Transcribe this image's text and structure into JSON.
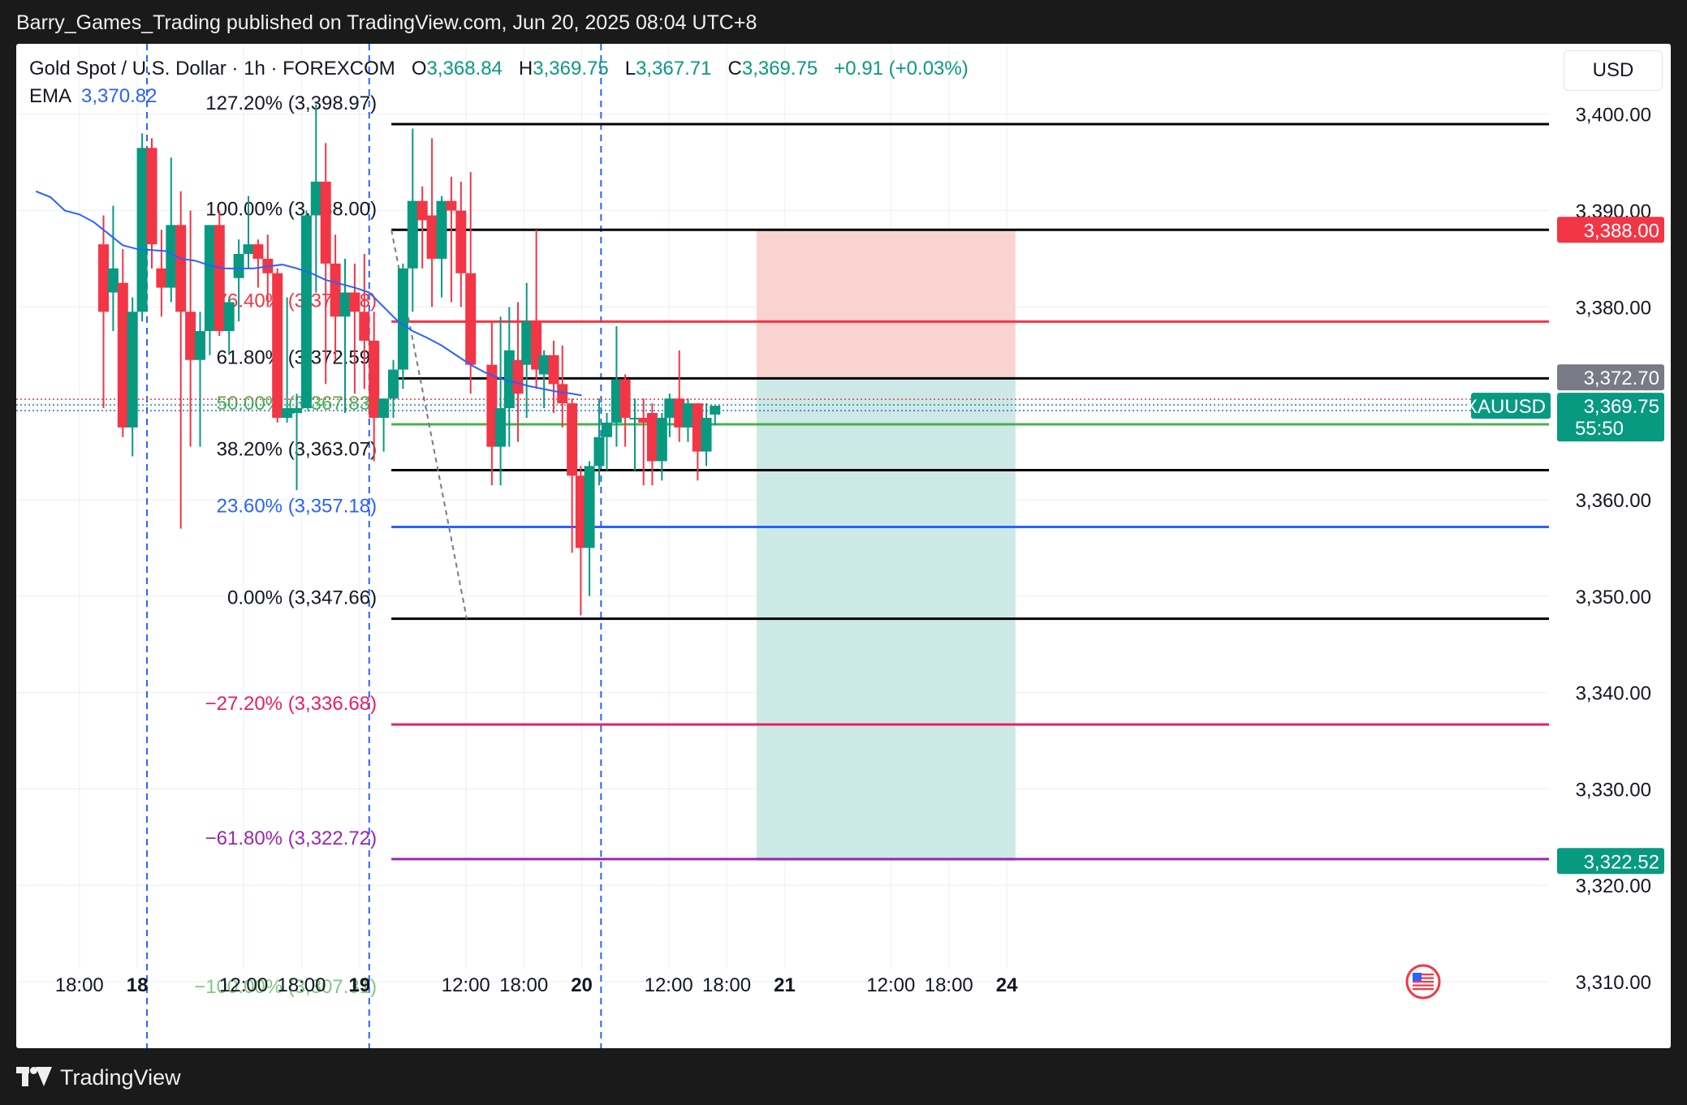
{
  "header": {
    "publisher": "Barry_Games_Trading published on TradingView.com, Jun 20, 2025 08:04 UTC+8"
  },
  "legend": {
    "symbol": "Gold Spot / U.S. Dollar · 1h · FOREXCOM",
    "o_label": "O",
    "o_value": "3,368.84",
    "h_label": "H",
    "h_value": "3,369.75",
    "l_label": "L",
    "l_value": "3,367.71",
    "c_label": "C",
    "c_value": "3,369.75",
    "change": "+0.91 (+0.03%)",
    "ema_label": "EMA",
    "ema_value": "3,370.82"
  },
  "currency_button": "USD",
  "footer": {
    "brand": "TradingView"
  },
  "colors": {
    "up": "#089981",
    "down": "#f23645",
    "ema": "#2962ff",
    "sl_zone": "#f9d3d0",
    "tp_zone": "#cde9e6"
  },
  "chart_data": {
    "type": "candlestick",
    "title": "Gold Spot / U.S. Dollar · 1h · FOREXCOM",
    "y_axis": {
      "ticks": [
        3400,
        3390,
        3380,
        3370,
        3360,
        3350,
        3340,
        3330,
        3320,
        3310
      ],
      "tick_labels": [
        "3,400.00",
        "3,390.00",
        "3,380.00",
        "3,370.00",
        "3,360.00",
        "3,350.00",
        "3,340.00",
        "3,330.00",
        "3,320.00",
        "3,310.00"
      ],
      "range": [
        3303.1,
        3407.3
      ]
    },
    "x_axis": {
      "ticks": [
        {
          "bar": -2.5,
          "label": "18:00",
          "bold": false
        },
        {
          "bar": 3.5,
          "label": "18",
          "bold": true
        },
        {
          "bar": 14.5,
          "label": "12:00",
          "bold": false
        },
        {
          "bar": 20.5,
          "label": "18:00",
          "bold": false
        },
        {
          "bar": 26.5,
          "label": "19",
          "bold": true
        },
        {
          "bar": 37.5,
          "label": "12:00",
          "bold": false
        },
        {
          "bar": 43.5,
          "label": "18:00",
          "bold": false
        },
        {
          "bar": 49.5,
          "label": "20",
          "bold": true
        },
        {
          "bar": 58.5,
          "label": "12:00",
          "bold": false
        },
        {
          "bar": 64.5,
          "label": "18:00",
          "bold": false
        },
        {
          "bar": 70.5,
          "label": "21",
          "bold": true
        },
        {
          "bar": 81.5,
          "label": "12:00",
          "bold": false
        },
        {
          "bar": 87.5,
          "label": "18:00",
          "bold": false
        },
        {
          "bar": 93.5,
          "label": "24",
          "bold": true
        }
      ],
      "session_breaks": [
        4.5,
        27.5,
        51.5
      ]
    },
    "candles": [
      {
        "o": 3386.5,
        "h": 3389.5,
        "l": 3369.5,
        "c": 3379.5
      },
      {
        "o": 3381.5,
        "h": 3390.5,
        "l": 3377.5,
        "c": 3384.0
      },
      {
        "o": 3382.5,
        "h": 3386.0,
        "l": 3366.5,
        "c": 3367.5
      },
      {
        "o": 3367.5,
        "h": 3381.0,
        "l": 3364.5,
        "c": 3379.5
      },
      {
        "o": 3379.5,
        "h": 3398.0,
        "l": 3378.5,
        "c": 3396.5
      },
      {
        "o": 3396.5,
        "h": 3397.5,
        "l": 3384.0,
        "c": 3386.5
      },
      {
        "o": 3384.0,
        "h": 3388.0,
        "l": 3379.0,
        "c": 3382.0
      },
      {
        "o": 3382.0,
        "h": 3395.5,
        "l": 3380.5,
        "c": 3388.5
      },
      {
        "o": 3388.5,
        "h": 3392.0,
        "l": 3357.0,
        "c": 3379.5
      },
      {
        "o": 3379.5,
        "h": 3390.0,
        "l": 3365.5,
        "c": 3374.5
      },
      {
        "o": 3374.5,
        "h": 3379.5,
        "l": 3365.5,
        "c": 3377.5
      },
      {
        "o": 3377.5,
        "h": 3388.5,
        "l": 3375.0,
        "c": 3388.5
      },
      {
        "o": 3388.5,
        "h": 3390.0,
        "l": 3377.0,
        "c": 3377.5
      },
      {
        "o": 3377.5,
        "h": 3381.0,
        "l": 3375.0,
        "c": 3380.5
      },
      {
        "o": 3383.0,
        "h": 3387.0,
        "l": 3378.5,
        "c": 3385.5
      },
      {
        "o": 3385.5,
        "h": 3391.5,
        "l": 3384.0,
        "c": 3386.5
      },
      {
        "o": 3386.5,
        "h": 3387.0,
        "l": 3382.0,
        "c": 3385.0
      },
      {
        "o": 3385.0,
        "h": 3387.5,
        "l": 3380.0,
        "c": 3383.5
      },
      {
        "o": 3383.5,
        "h": 3384.0,
        "l": 3368.0,
        "c": 3368.5
      },
      {
        "o": 3368.5,
        "h": 3381.0,
        "l": 3368.0,
        "c": 3369.5
      },
      {
        "o": 3369.0,
        "h": 3371.0,
        "l": 3361.0,
        "c": 3369.5
      },
      {
        "o": 3369.5,
        "h": 3390.0,
        "l": 3369.5,
        "c": 3389.5
      },
      {
        "o": 3389.5,
        "h": 3401.0,
        "l": 3381.5,
        "c": 3393.0
      },
      {
        "o": 3393.0,
        "h": 3397.0,
        "l": 3372.0,
        "c": 3384.5
      },
      {
        "o": 3384.5,
        "h": 3387.5,
        "l": 3374.5,
        "c": 3379.0
      },
      {
        "o": 3379.0,
        "h": 3385.0,
        "l": 3369.0,
        "c": 3381.5
      },
      {
        "o": 3381.5,
        "h": 3384.5,
        "l": 3371.0,
        "c": 3379.5
      },
      {
        "o": 3379.5,
        "h": 3385.5,
        "l": 3371.5,
        "c": 3376.5
      },
      {
        "o": 3376.5,
        "h": 3379.5,
        "l": 3364.0,
        "c": 3368.5
      },
      {
        "o": 3368.5,
        "h": 3370.5,
        "l": 3365.0,
        "c": 3370.5
      },
      {
        "o": 3370.5,
        "h": 3374.5,
        "l": 3368.5,
        "c": 3373.5
      },
      {
        "o": 3373.5,
        "h": 3384.5,
        "l": 3371.5,
        "c": 3384.0
      },
      {
        "o": 3384.0,
        "h": 3398.5,
        "l": 3379.5,
        "c": 3391.0
      },
      {
        "o": 3391.0,
        "h": 3392.5,
        "l": 3384.0,
        "c": 3389.0
      },
      {
        "o": 3389.5,
        "h": 3397.5,
        "l": 3380.0,
        "c": 3385.0
      },
      {
        "o": 3385.0,
        "h": 3391.5,
        "l": 3381.0,
        "c": 3391.0
      },
      {
        "o": 3391.0,
        "h": 3393.5,
        "l": 3380.5,
        "c": 3390.0
      },
      {
        "o": 3390.0,
        "h": 3393.0,
        "l": 3380.0,
        "c": 3383.5
      },
      {
        "o": 3383.5,
        "h": 3394.0,
        "l": 3371.0,
        "c": 3374.0
      },
      {
        "o": 3374.0,
        "h": 3378.5,
        "l": 3361.5,
        "c": 3365.5
      },
      {
        "o": 3365.5,
        "h": 3379.0,
        "l": 3361.5,
        "c": 3369.5
      },
      {
        "o": 3369.5,
        "h": 3380.0,
        "l": 3365.5,
        "c": 3375.5
      },
      {
        "o": 3374.5,
        "h": 3380.5,
        "l": 3366.0,
        "c": 3371.0
      },
      {
        "o": 3374.0,
        "h": 3382.5,
        "l": 3368.5,
        "c": 3378.5
      },
      {
        "o": 3378.5,
        "h": 3388.0,
        "l": 3371.5,
        "c": 3373.5
      },
      {
        "o": 3373.0,
        "h": 3375.5,
        "l": 3369.5,
        "c": 3375.0
      },
      {
        "o": 3375.0,
        "h": 3376.5,
        "l": 3369.0,
        "c": 3372.0
      },
      {
        "o": 3372.0,
        "h": 3376.0,
        "l": 3367.5,
        "c": 3370.0
      },
      {
        "o": 3370.0,
        "h": 3370.5,
        "l": 3354.5,
        "c": 3362.5
      },
      {
        "o": 3362.5,
        "h": 3363.5,
        "l": 3348.0,
        "c": 3355.0
      },
      {
        "o": 3355.0,
        "h": 3364.0,
        "l": 3350.0,
        "c": 3363.5
      },
      {
        "o": 3363.5,
        "h": 3370.5,
        "l": 3361.5,
        "c": 3366.5
      },
      {
        "o": 3366.5,
        "h": 3369.0,
        "l": 3363.0,
        "c": 3368.0
      },
      {
        "o": 3368.0,
        "h": 3378.0,
        "l": 3365.5,
        "c": 3372.5
      },
      {
        "o": 3372.5,
        "h": 3373.0,
        "l": 3365.5,
        "c": 3368.5
      },
      {
        "o": 3368.5,
        "h": 3370.5,
        "l": 3363.0,
        "c": 3368.5
      },
      {
        "o": 3368.5,
        "h": 3370.5,
        "l": 3361.5,
        "c": 3368.0
      },
      {
        "o": 3369.0,
        "h": 3370.0,
        "l": 3361.5,
        "c": 3364.0
      },
      {
        "o": 3364.0,
        "h": 3369.0,
        "l": 3362.0,
        "c": 3368.5
      },
      {
        "o": 3368.5,
        "h": 3371.0,
        "l": 3366.5,
        "c": 3370.5
      },
      {
        "o": 3370.5,
        "h": 3375.5,
        "l": 3366.0,
        "c": 3367.5
      },
      {
        "o": 3367.5,
        "h": 3370.5,
        "l": 3366.0,
        "c": 3370.0
      },
      {
        "o": 3370.0,
        "h": 3370.0,
        "l": 3362.0,
        "c": 3365.0
      },
      {
        "o": 3365.0,
        "h": 3370.0,
        "l": 3363.5,
        "c": 3368.5
      },
      {
        "o": 3368.84,
        "h": 3369.75,
        "l": 3367.71,
        "c": 3369.75
      }
    ],
    "candle_x_override": [
      {
        "index": 39,
        "bar": 40.2
      },
      {
        "index": 40,
        "bar": 41.1
      },
      {
        "index": 41,
        "bar": 42.0
      },
      {
        "index": 42,
        "bar": 42.9
      },
      {
        "index": 43,
        "bar": 43.8
      },
      {
        "index": 44,
        "bar": 44.8
      },
      {
        "index": 45,
        "bar": 45.6
      },
      {
        "index": 46,
        "bar": 46.6
      },
      {
        "index": 47,
        "bar": 47.5
      },
      {
        "index": 48,
        "bar": 48.5
      },
      {
        "index": 49,
        "bar": 49.4
      },
      {
        "index": 50,
        "bar": 50.3
      },
      {
        "index": 51,
        "bar": 51.3
      },
      {
        "index": 52,
        "bar": 52.1
      },
      {
        "index": 53,
        "bar": 53.1
      },
      {
        "index": 54,
        "bar": 54.0
      },
      {
        "index": 55,
        "bar": 55.0
      },
      {
        "index": 56,
        "bar": 55.9
      },
      {
        "index": 57,
        "bar": 56.8
      },
      {
        "index": 58,
        "bar": 57.8
      },
      {
        "index": 59,
        "bar": 58.6
      },
      {
        "index": 60,
        "bar": 59.6
      },
      {
        "index": 61,
        "bar": 60.5
      },
      {
        "index": 62,
        "bar": 61.5
      },
      {
        "index": 63,
        "bar": 62.4
      },
      {
        "index": 64,
        "bar": 63.3
      }
    ],
    "ema": {
      "name": "EMA",
      "points": [
        [
          -7,
          3392.0
        ],
        [
          -5.5,
          3391.4
        ],
        [
          -4,
          3390.0
        ],
        [
          -2.5,
          3389.6
        ],
        [
          -1,
          3388.8
        ],
        [
          0.5,
          3387.6
        ],
        [
          2,
          3386.4
        ],
        [
          3.5,
          3386.0
        ],
        [
          5,
          3385.9
        ],
        [
          6.5,
          3385.8
        ],
        [
          8,
          3385.0
        ],
        [
          9.5,
          3384.8
        ],
        [
          11,
          3384.3
        ],
        [
          12.5,
          3384.0
        ],
        [
          14,
          3384.0
        ],
        [
          15.5,
          3384.0
        ],
        [
          17,
          3384.2
        ],
        [
          18.5,
          3384.4
        ],
        [
          20,
          3384.0
        ],
        [
          21.5,
          3383.5
        ],
        [
          23,
          3382.8
        ],
        [
          24.5,
          3382.4
        ],
        [
          26,
          3382.0
        ],
        [
          27.5,
          3381.5
        ],
        [
          29,
          3380.0
        ],
        [
          30.5,
          3378.5
        ],
        [
          32,
          3377.5
        ],
        [
          33.5,
          3376.8
        ],
        [
          35,
          3376.0
        ],
        [
          36.5,
          3375.0
        ],
        [
          38,
          3374.0
        ],
        [
          39.5,
          3373.2
        ],
        [
          41,
          3372.6
        ],
        [
          42.5,
          3372.2
        ],
        [
          44,
          3371.8
        ],
        [
          45.5,
          3371.5
        ],
        [
          47,
          3371.2
        ],
        [
          48.5,
          3371.0
        ],
        [
          49.5,
          3370.82
        ]
      ]
    },
    "fibonacci": {
      "levels": [
        {
          "label": "127.20%",
          "value": 3398.97,
          "value_label": "(3,398.97)",
          "color": "#000000",
          "text_color": "#131722"
        },
        {
          "label": "100.00%",
          "value": 3388.0,
          "value_label": "(3,388.00)",
          "color": "#000000",
          "text_color": "#131722"
        },
        {
          "label": "76.40%",
          "value": 3378.48,
          "value_label": "(3,378.48)",
          "color": "#f23645",
          "text_color": "#f23645"
        },
        {
          "label": "61.80%",
          "value": 3372.59,
          "value_label": "(3,372.59)",
          "color": "#000000",
          "text_color": "#131722"
        },
        {
          "label": "50.00%",
          "value": 3367.83,
          "value_label": "(3,367.83)",
          "color": "#4caf50",
          "text_color": "#4caf50"
        },
        {
          "label": "38.20%",
          "value": 3363.07,
          "value_label": "(3,363.07)",
          "color": "#000000",
          "text_color": "#131722"
        },
        {
          "label": "23.60%",
          "value": 3357.18,
          "value_label": "(3,357.18)",
          "color": "#2962ff",
          "text_color": "#2962ff"
        },
        {
          "label": "0.00%",
          "value": 3347.66,
          "value_label": "(3,347.66)",
          "color": "#000000",
          "text_color": "#131722"
        },
        {
          "label": "−27.20%",
          "value": 3336.68,
          "value_label": "(3,336.68)",
          "color": "#e91e63",
          "text_color": "#e91e63"
        },
        {
          "label": "−61.80%",
          "value": 3322.72,
          "value_label": "(3,322.72)",
          "color": "#9c27b0",
          "text_color": "#9c27b0"
        },
        {
          "label": "−100.00%",
          "value": 3307.31,
          "value_label": "(3,307.31)",
          "color": "#81c784",
          "text_color": "#81c784"
        }
      ],
      "line_start_bar": 29.8,
      "line_end_bar": 139.5,
      "trend_from": {
        "bar": 29.8,
        "price": 3388.0
      },
      "trend_to": {
        "bar": 37.6,
        "price": 3347.66
      }
    },
    "short_position": {
      "start_bar": 67.6,
      "end_bar": 94.4,
      "stop_loss": 3388.0,
      "entry": 3372.7,
      "take_profit": 3322.52
    },
    "price_labels": [
      {
        "value": 3388.0,
        "text": "3,388.00",
        "bg": "#f23645"
      },
      {
        "value": 3372.7,
        "text": "3,372.70",
        "bg": "#787b86"
      },
      {
        "value": 3322.52,
        "text": "3,322.52",
        "bg": "#089981"
      }
    ],
    "current_price": {
      "symbol": "XAUUSD",
      "value": 3369.75,
      "text": "3,369.75",
      "countdown": "55:50",
      "bg": "#089981"
    }
  }
}
